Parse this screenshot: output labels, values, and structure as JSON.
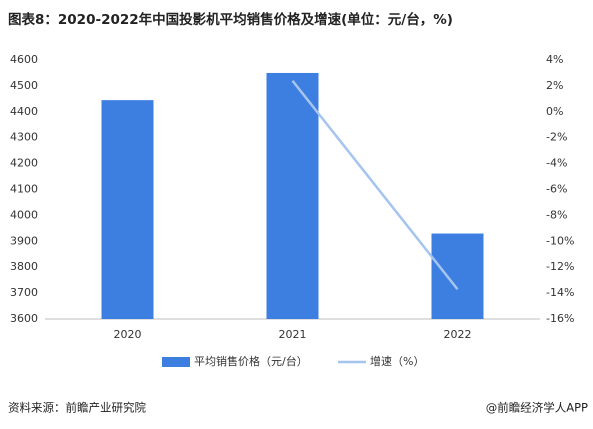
{
  "chart_data": {
    "type": "bar_line",
    "title": "图表8：2020-2022年中国投影机平均销售价格及增速(单位：元/台，%)",
    "categories": [
      "2020",
      "2021",
      "2022"
    ],
    "series": [
      {
        "name": "平均销售价格（元/台）",
        "type": "bar",
        "color": "#3d7fe0",
        "values": [
          4445,
          4550,
          3930
        ]
      },
      {
        "name": "增速（%）",
        "type": "line",
        "axis": "y2",
        "color": "#a6c4f0",
        "values": [
          null,
          2.4,
          -13.7
        ]
      }
    ],
    "ylim": [
      3600,
      4600
    ],
    "yticks": [
      3600,
      3700,
      3800,
      3900,
      4000,
      4100,
      4200,
      4300,
      4400,
      4500,
      4600
    ],
    "y2lim": [
      -16,
      4
    ],
    "y2ticks": [
      {
        "value": -16,
        "label": "-16%"
      },
      {
        "value": -14,
        "label": "-14%"
      },
      {
        "value": -12,
        "label": "-12%"
      },
      {
        "value": -10,
        "label": "-10%"
      },
      {
        "value": -8,
        "label": "-8%"
      },
      {
        "value": -6,
        "label": "-6%"
      },
      {
        "value": -4,
        "label": "-4%"
      },
      {
        "value": -2,
        "label": "-2%"
      },
      {
        "value": 0,
        "label": "0%"
      },
      {
        "value": 2,
        "label": "2%"
      },
      {
        "value": 4,
        "label": "4%"
      }
    ],
    "grid": false,
    "legend": "bottom",
    "source": "资料来源：前瞻产业研究院",
    "credit": "@前瞻经济学人APP"
  }
}
